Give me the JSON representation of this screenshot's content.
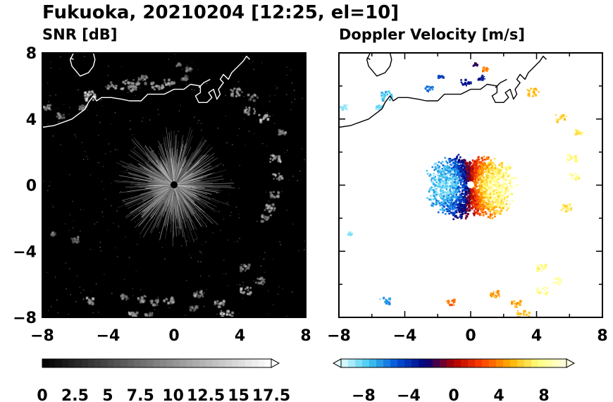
{
  "title": "Fukuoka, 20210204 [12:25, el=10]",
  "chart_data": [
    {
      "type": "heatmap",
      "title": "SNR [dB]",
      "xlabel": "",
      "ylabel": "",
      "xlim": [
        -8,
        8
      ],
      "ylim": [
        -8,
        8
      ],
      "xticks": [
        "−8",
        "−4",
        "0",
        "4",
        "8"
      ],
      "yticks": [
        "8",
        "4",
        "0",
        "−4",
        "−8"
      ],
      "background_color": "#000000",
      "coastline_color": "#ffffff",
      "colorbar": {
        "min": 0,
        "max": 17.5,
        "step": 0.5,
        "extend": "max",
        "colors": [
          "#000000",
          "#ffffff"
        ],
        "tick_values": [
          0,
          2.5,
          5,
          7.5,
          10,
          12.5,
          15,
          17.5
        ],
        "tick_labels": [
          "0",
          "2.5",
          "5",
          "7.5",
          "10",
          "12.5",
          "15",
          "17.5"
        ]
      }
    },
    {
      "type": "heatmap",
      "title": "Doppler Velocity [m/s]",
      "xlabel": "",
      "ylabel": "",
      "xlim": [
        -8,
        8
      ],
      "ylim": [
        -8,
        8
      ],
      "xticks": [
        "−8",
        "−4",
        "0",
        "4",
        "8"
      ],
      "yticks": [],
      "background_color": "#ffffff",
      "coastline_color": "#000000",
      "colorbar": {
        "min": -10,
        "max": 10,
        "step": 0.625,
        "extend": "both",
        "colors": [
          "#e6ffff",
          "#40c8f0",
          "#0050d8",
          "#00007a",
          "#b00000",
          "#ff4000",
          "#ffb000",
          "#ffff80",
          "#ffffe6"
        ],
        "tick_values": [
          -8,
          -4,
          0,
          4,
          8
        ],
        "tick_labels": [
          "−8",
          "−4",
          "0",
          "4",
          "8"
        ]
      }
    }
  ]
}
